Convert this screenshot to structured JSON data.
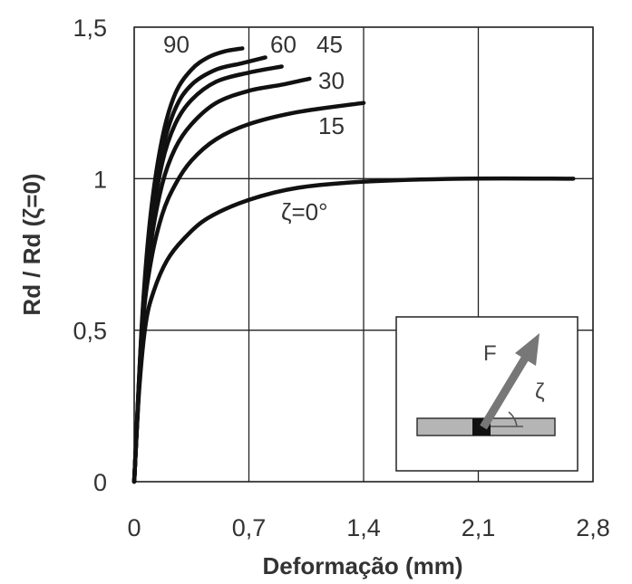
{
  "chart_data": {
    "type": "line",
    "title": "",
    "xlabel": "Deformação (mm)",
    "ylabel": "Rd / Rd (ζ=0)",
    "xlim": [
      0,
      2.8
    ],
    "ylim": [
      0,
      1.5
    ],
    "x_ticks": [
      "0",
      "0,7",
      "1,4",
      "2,1",
      "2,8"
    ],
    "y_ticks": [
      "0",
      "0,5",
      "1",
      "1,5"
    ],
    "grid": true,
    "series": [
      {
        "name": "ζ=0°",
        "points": [
          [
            0,
            0
          ],
          [
            0.03,
            0.3
          ],
          [
            0.07,
            0.52
          ],
          [
            0.12,
            0.63
          ],
          [
            0.2,
            0.73
          ],
          [
            0.3,
            0.8
          ],
          [
            0.45,
            0.87
          ],
          [
            0.7,
            0.93
          ],
          [
            1.0,
            0.97
          ],
          [
            1.4,
            0.99
          ],
          [
            2.0,
            1.0
          ],
          [
            2.68,
            1.0
          ]
        ]
      },
      {
        "name": "15",
        "points": [
          [
            0,
            0
          ],
          [
            0.05,
            0.5
          ],
          [
            0.1,
            0.72
          ],
          [
            0.17,
            0.88
          ],
          [
            0.25,
            0.98
          ],
          [
            0.35,
            1.06
          ],
          [
            0.5,
            1.13
          ],
          [
            0.7,
            1.18
          ],
          [
            1.0,
            1.22
          ],
          [
            1.4,
            1.25
          ]
        ]
      },
      {
        "name": "30",
        "points": [
          [
            0,
            0
          ],
          [
            0.05,
            0.52
          ],
          [
            0.1,
            0.78
          ],
          [
            0.17,
            0.98
          ],
          [
            0.25,
            1.1
          ],
          [
            0.35,
            1.18
          ],
          [
            0.5,
            1.25
          ],
          [
            0.7,
            1.29
          ],
          [
            0.9,
            1.31
          ],
          [
            1.07,
            1.33
          ]
        ]
      },
      {
        "name": "45",
        "points": [
          [
            0,
            0
          ],
          [
            0.05,
            0.53
          ],
          [
            0.1,
            0.82
          ],
          [
            0.17,
            1.05
          ],
          [
            0.25,
            1.18
          ],
          [
            0.35,
            1.26
          ],
          [
            0.5,
            1.32
          ],
          [
            0.7,
            1.35
          ],
          [
            0.9,
            1.37
          ]
        ]
      },
      {
        "name": "60",
        "points": [
          [
            0,
            0
          ],
          [
            0.05,
            0.54
          ],
          [
            0.1,
            0.85
          ],
          [
            0.17,
            1.09
          ],
          [
            0.25,
            1.23
          ],
          [
            0.35,
            1.31
          ],
          [
            0.5,
            1.36
          ],
          [
            0.65,
            1.38
          ],
          [
            0.8,
            1.4
          ]
        ]
      },
      {
        "name": "90",
        "points": [
          [
            0,
            0
          ],
          [
            0.05,
            0.55
          ],
          [
            0.1,
            0.88
          ],
          [
            0.17,
            1.13
          ],
          [
            0.25,
            1.28
          ],
          [
            0.35,
            1.36
          ],
          [
            0.45,
            1.4
          ],
          [
            0.55,
            1.42
          ],
          [
            0.66,
            1.43
          ]
        ]
      }
    ],
    "inset": {
      "force_label": "F",
      "angle_label": "ζ"
    }
  }
}
